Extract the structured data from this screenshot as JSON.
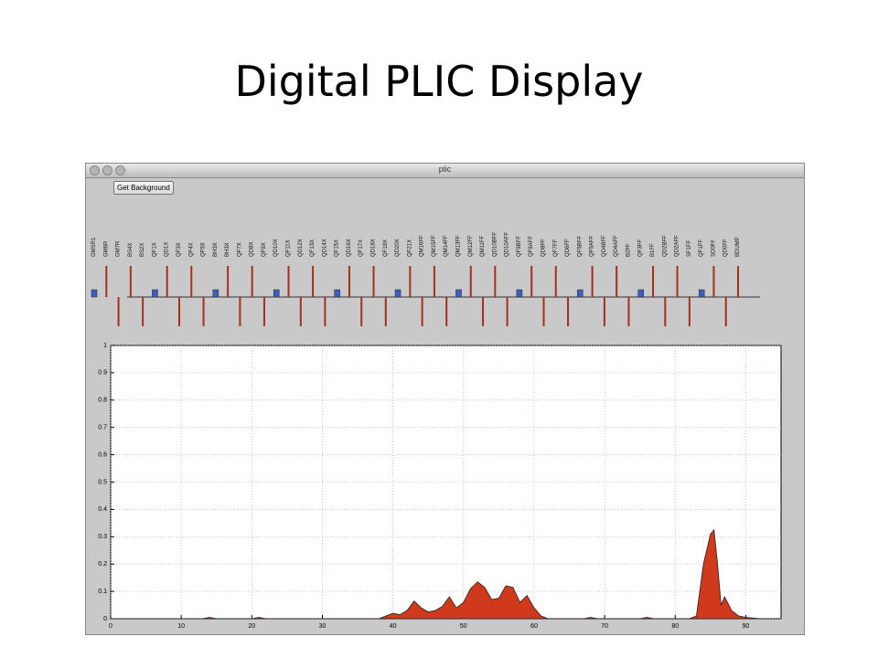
{
  "slide": {
    "title": "Digital PLIC Display"
  },
  "window": {
    "title": "plic",
    "button": "Get Background"
  },
  "beamline": {
    "elements": [
      "GMSR1",
      "GM6R",
      "GM7R",
      "BS4X",
      "BS2X",
      "QF1X",
      "QD1X",
      "QF3X",
      "QF4X",
      "QF5X",
      "BH3X",
      "BH3X",
      "QF7X",
      "QD8X",
      "QF9X",
      "QD10X",
      "QF11X",
      "QD12X",
      "QF13X",
      "QD14X",
      "QF15X",
      "QD16X",
      "QF17X",
      "QD18X",
      "QF19X",
      "QD20X",
      "QF21X",
      "QM16FF",
      "QM15FF",
      "QM14FF",
      "QM13FF",
      "QM12FF",
      "QM11FF",
      "QD10BFF",
      "QD10AFF",
      "QF9BFF",
      "QF9AFF",
      "QD8FF",
      "QF7FF",
      "QD6FF",
      "QF5BFF",
      "QF5AFF",
      "QD4BFF",
      "QD4AFF",
      "B2FF",
      "QF3FF",
      "B1FF",
      "QD2BFF",
      "QD2AFF",
      "SF1FF",
      "QF1FF",
      "SD0FF",
      "QD0FF",
      "BDUMP"
    ]
  },
  "chart_data": {
    "type": "area",
    "color": "#d0391c",
    "x": [
      0,
      13,
      14,
      15,
      20,
      21,
      22,
      38,
      39,
      40,
      41,
      42,
      43,
      44,
      45,
      46,
      47,
      48,
      49,
      50,
      51,
      52,
      53,
      54,
      55,
      56,
      57,
      58,
      59,
      60,
      61,
      62,
      67,
      68,
      69,
      75,
      76,
      77,
      82,
      83,
      84,
      85,
      85.5,
      86,
      86.5,
      87,
      88,
      89,
      90,
      92
    ],
    "values": [
      0,
      0,
      0.005,
      0,
      0,
      0.005,
      0,
      0,
      0.01,
      0.02,
      0.015,
      0.03,
      0.065,
      0.04,
      0.025,
      0.03,
      0.045,
      0.08,
      0.04,
      0.06,
      0.11,
      0.135,
      0.115,
      0.07,
      0.075,
      0.12,
      0.115,
      0.06,
      0.085,
      0.04,
      0.01,
      0,
      0,
      0.005,
      0,
      0,
      0.005,
      0,
      0,
      0.01,
      0.2,
      0.31,
      0.325,
      0.2,
      0.05,
      0.08,
      0.03,
      0.01,
      0.005,
      0
    ],
    "xlim": [
      0,
      95
    ],
    "ylim": [
      0,
      1
    ],
    "xticks": [
      0,
      10,
      20,
      30,
      40,
      50,
      60,
      70,
      80,
      90
    ],
    "yticks": [
      0,
      0.1,
      0.2,
      0.3,
      0.4,
      0.5,
      0.6,
      0.7,
      0.8,
      0.9,
      1
    ],
    "grid": true
  }
}
